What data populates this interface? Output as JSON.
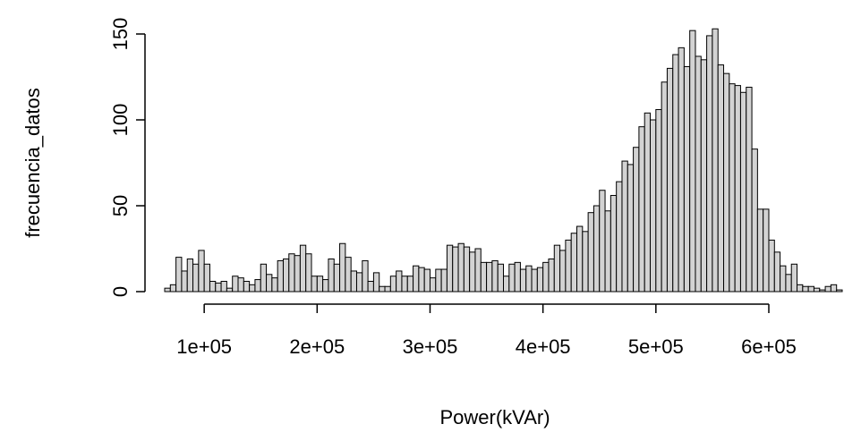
{
  "chart_data": {
    "type": "histogram",
    "x_label": "Power(kVAr)",
    "y_label": "frecuencia_datos",
    "bins": [
      65000,
      70000,
      75000,
      80000,
      85000,
      90000,
      95000,
      100000,
      105000,
      110000,
      115000,
      120000,
      125000,
      130000,
      135000,
      140000,
      145000,
      150000,
      155000,
      160000,
      165000,
      170000,
      175000,
      180000,
      185000,
      190000,
      195000,
      200000,
      205000,
      210000,
      215000,
      220000,
      225000,
      230000,
      235000,
      240000,
      245000,
      250000,
      255000,
      260000,
      265000,
      270000,
      275000,
      280000,
      285000,
      290000,
      295000,
      300000,
      305000,
      310000,
      315000,
      320000,
      325000,
      330000,
      335000,
      340000,
      345000,
      350000,
      355000,
      360000,
      365000,
      370000,
      375000,
      380000,
      385000,
      390000,
      395000,
      400000,
      405000,
      410000,
      415000,
      420000,
      425000,
      430000,
      435000,
      440000,
      445000,
      450000,
      455000,
      460000,
      465000,
      470000,
      475000,
      480000,
      485000,
      490000,
      495000,
      500000,
      505000,
      510000,
      515000,
      520000,
      525000,
      530000,
      535000,
      540000,
      545000,
      550000,
      555000,
      560000,
      565000,
      570000,
      575000,
      580000,
      585000,
      590000,
      595000,
      600000,
      605000,
      610000,
      615000,
      620000,
      625000,
      630000,
      635000,
      640000,
      645000,
      650000,
      655000,
      660000,
      665000
    ],
    "counts": [
      2,
      4,
      20,
      12,
      19,
      16,
      24,
      16,
      6,
      5,
      6,
      2,
      9,
      8,
      6,
      4,
      7,
      16,
      10,
      8,
      18,
      19,
      22,
      21,
      27,
      22,
      9,
      9,
      7,
      19,
      16,
      28,
      20,
      12,
      11,
      18,
      6,
      11,
      3,
      3,
      9,
      12,
      9,
      9,
      15,
      14,
      13,
      8,
      13,
      13,
      27,
      26,
      28,
      26,
      23,
      25,
      17,
      17,
      18,
      16,
      9,
      16,
      17,
      13,
      15,
      13,
      14,
      17,
      19,
      27,
      24,
      30,
      34,
      38,
      35,
      46,
      50,
      59,
      47,
      56,
      64,
      76,
      74,
      84,
      96,
      104,
      100,
      106,
      122,
      130,
      138,
      142,
      131,
      152,
      137,
      135,
      149,
      153,
      132,
      127,
      121,
      120,
      116,
      119,
      83,
      48,
      48,
      30,
      23,
      15,
      10,
      16,
      4,
      3,
      3,
      2,
      1,
      3,
      4,
      1
    ],
    "color": "#d3d3d3",
    "xlim": [
      65000,
      665000
    ],
    "ylim": [
      0,
      150
    ],
    "xticks": [
      {
        "value": 100000,
        "label": "1e+05"
      },
      {
        "value": 200000,
        "label": "2e+05"
      },
      {
        "value": 300000,
        "label": "3e+05"
      },
      {
        "value": 400000,
        "label": "4e+05"
      },
      {
        "value": 500000,
        "label": "5e+05"
      },
      {
        "value": 600000,
        "label": "6e+05"
      }
    ],
    "yticks": [
      0,
      50,
      100,
      150
    ]
  }
}
